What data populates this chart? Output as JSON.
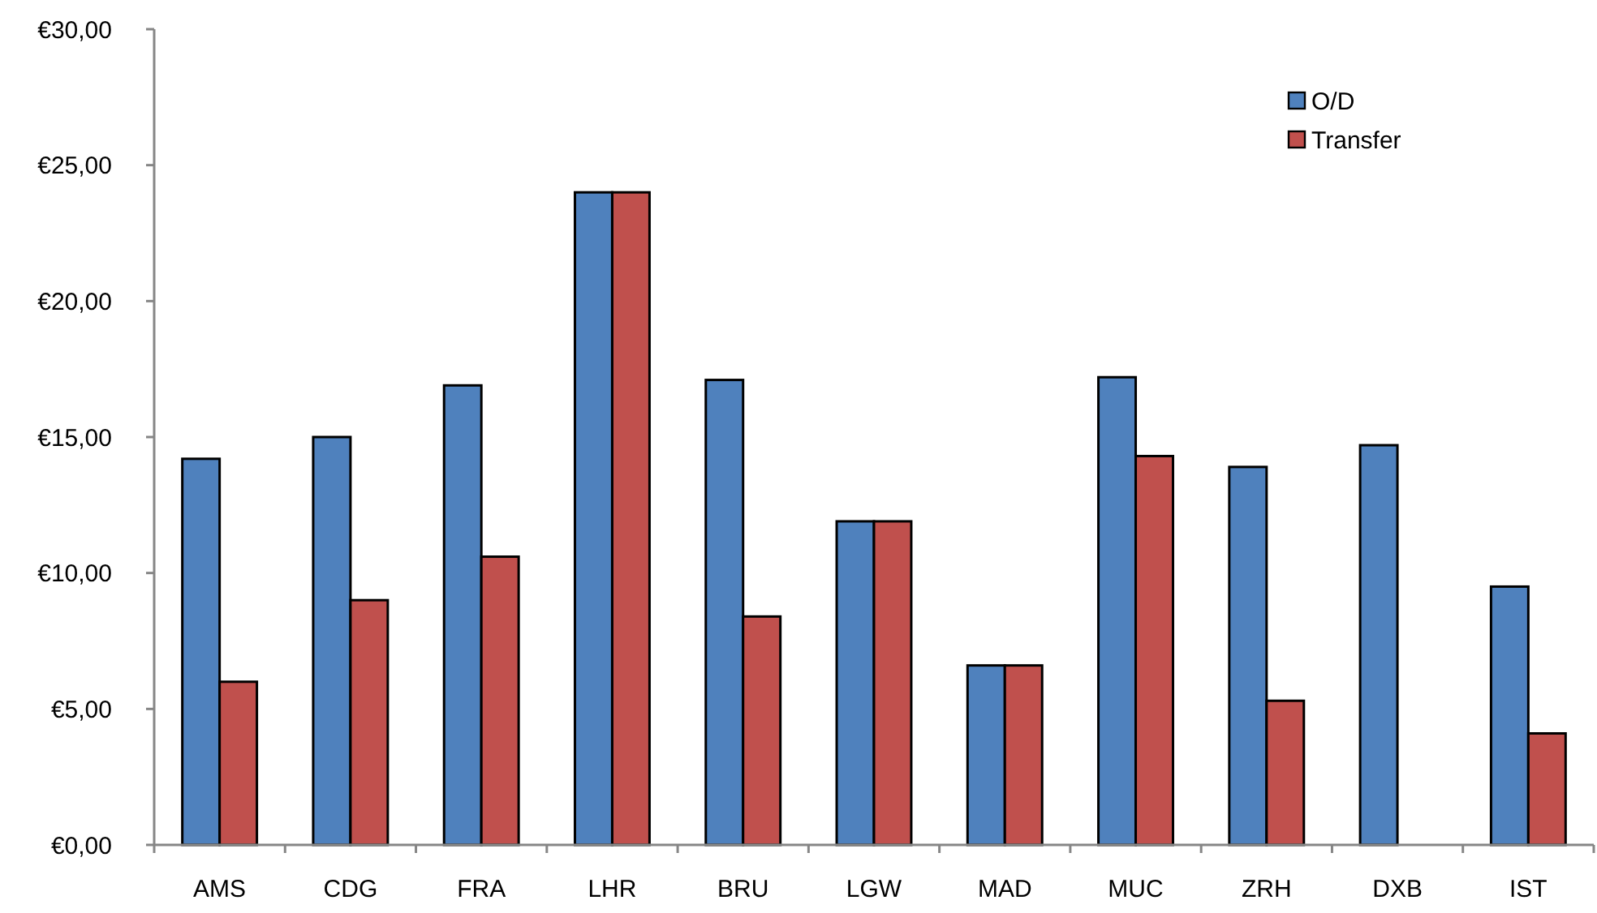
{
  "chart_data": {
    "type": "bar",
    "categories": [
      "AMS",
      "CDG",
      "FRA",
      "LHR",
      "BRU",
      "LGW",
      "MAD",
      "MUC",
      "ZRH",
      "DXB",
      "IST"
    ],
    "series": [
      {
        "name": "O/D",
        "color": "#4f81bd",
        "values": [
          14.2,
          15.0,
          16.9,
          24.0,
          17.1,
          11.9,
          6.6,
          17.2,
          13.9,
          14.7,
          9.5
        ]
      },
      {
        "name": "Transfer",
        "color": "#c0504d",
        "values": [
          6.0,
          9.0,
          10.6,
          24.0,
          8.4,
          11.9,
          6.6,
          14.3,
          5.3,
          null,
          4.1
        ]
      }
    ],
    "ylim": [
      0,
      30
    ],
    "yticks": [
      {
        "value": 0,
        "label": "€0,00"
      },
      {
        "value": 5,
        "label": "€5,00"
      },
      {
        "value": 10,
        "label": "€10,00"
      },
      {
        "value": 15,
        "label": "€15,00"
      },
      {
        "value": 20,
        "label": "€20,00"
      },
      {
        "value": 25,
        "label": "€25,00"
      },
      {
        "value": 30,
        "label": "€30,00"
      }
    ],
    "grid": false,
    "legend": "top right"
  }
}
